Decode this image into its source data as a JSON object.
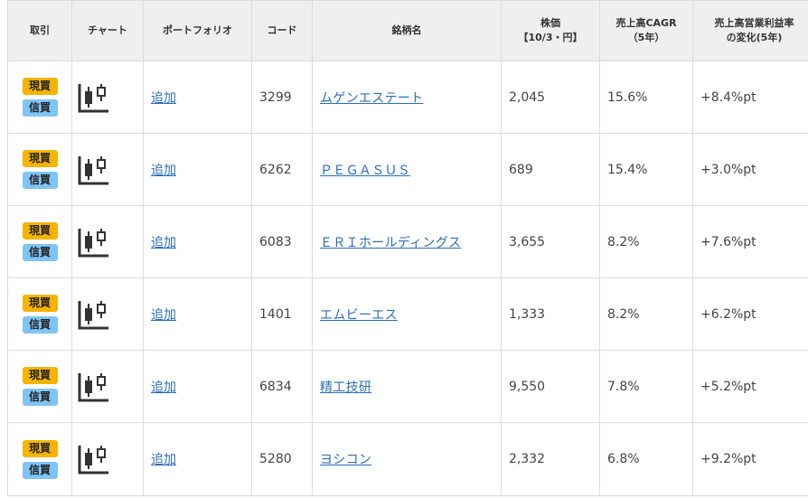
{
  "headers": {
    "trade": "取引",
    "chart": "チャート",
    "portfolio": "ポートフォリオ",
    "code": "コード",
    "name": "銘柄名",
    "price_line1": "株価",
    "price_line2": "【10/3・円】",
    "cagr_line1": "売上高CAGR",
    "cagr_line2": "（5年）",
    "margin_line1": "売上高営業利益率",
    "margin_line2": "の変化(5年)"
  },
  "badges": {
    "genbutsu": "現買",
    "shinyo": "信買"
  },
  "colors": {
    "genbutsu_badge": "#f5b400",
    "shinyo_badge": "#7ec4f5",
    "link": "#2a6ebb"
  },
  "chart_icon": "candlestick-chart-icon",
  "rows": [
    {
      "add": "追加",
      "code": "3299",
      "name": "ムゲンエステート",
      "price": "2,045",
      "cagr": "15.6%",
      "margin_change": "+8.4%pt"
    },
    {
      "add": "追加",
      "code": "6262",
      "name": "ＰＥＧＡＳＵＳ",
      "price": "689",
      "cagr": "15.4%",
      "margin_change": "+3.0%pt"
    },
    {
      "add": "追加",
      "code": "6083",
      "name": "ＥＲＩホールディングス",
      "price": "3,655",
      "cagr": "8.2%",
      "margin_change": "+7.6%pt"
    },
    {
      "add": "追加",
      "code": "1401",
      "name": "エムビーエス",
      "price": "1,333",
      "cagr": "8.2%",
      "margin_change": "+6.2%pt"
    },
    {
      "add": "追加",
      "code": "6834",
      "name": "精工技研",
      "price": "9,550",
      "cagr": "7.8%",
      "margin_change": "+5.2%pt"
    },
    {
      "add": "追加",
      "code": "5280",
      "name": "ヨシコン",
      "price": "2,332",
      "cagr": "6.8%",
      "margin_change": "+9.2%pt"
    }
  ]
}
